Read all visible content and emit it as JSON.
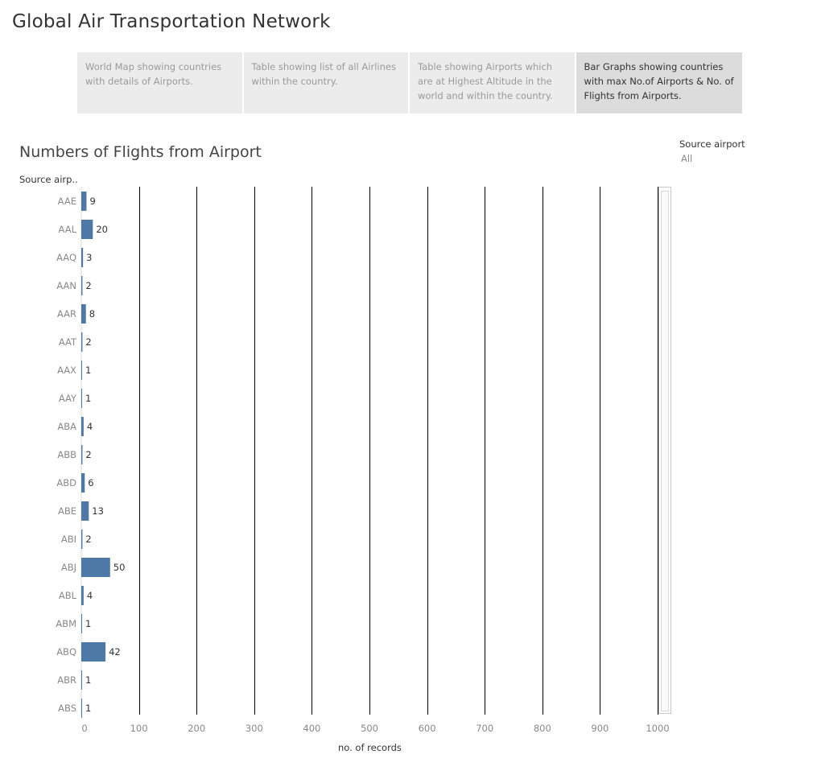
{
  "page": {
    "title": "Global Air Transportation Network"
  },
  "tabs": [
    {
      "label": "World Map showing countries with details of Airports.",
      "active": false
    },
    {
      "label": "Table showing list of all Airlines within the country.",
      "active": false
    },
    {
      "label": "Table showing Airports which are at Highest Altitude in the world and within the country.",
      "active": false
    },
    {
      "label": "Bar Graphs showing countries with max No.of Airports & No. of Flights from Airports.",
      "active": true
    }
  ],
  "filter": {
    "label": "Source airport",
    "value": "All"
  },
  "colors": {
    "bar": "#4e79a7",
    "gridline": "#000000"
  },
  "chart_data": {
    "type": "bar",
    "orientation": "horizontal",
    "title": "Numbers of Flights from Airport",
    "row_header": "Source airp..",
    "xlabel": "no. of records",
    "xlim": [
      0,
      1000
    ],
    "xticks": [
      "0",
      "100",
      "200",
      "300",
      "400",
      "500",
      "600",
      "700",
      "800",
      "900",
      "1000"
    ],
    "categories": [
      "AAE",
      "AAL",
      "AAQ",
      "AAN",
      "AAR",
      "AAT",
      "AAX",
      "AAY",
      "ABA",
      "ABB",
      "ABD",
      "ABE",
      "ABI",
      "ABJ",
      "ABL",
      "ABM",
      "ABQ",
      "ABR",
      "ABS"
    ],
    "values": [
      9,
      20,
      3,
      2,
      8,
      2,
      1,
      1,
      4,
      2,
      6,
      13,
      2,
      50,
      4,
      1,
      42,
      1,
      1
    ],
    "grid": true
  }
}
